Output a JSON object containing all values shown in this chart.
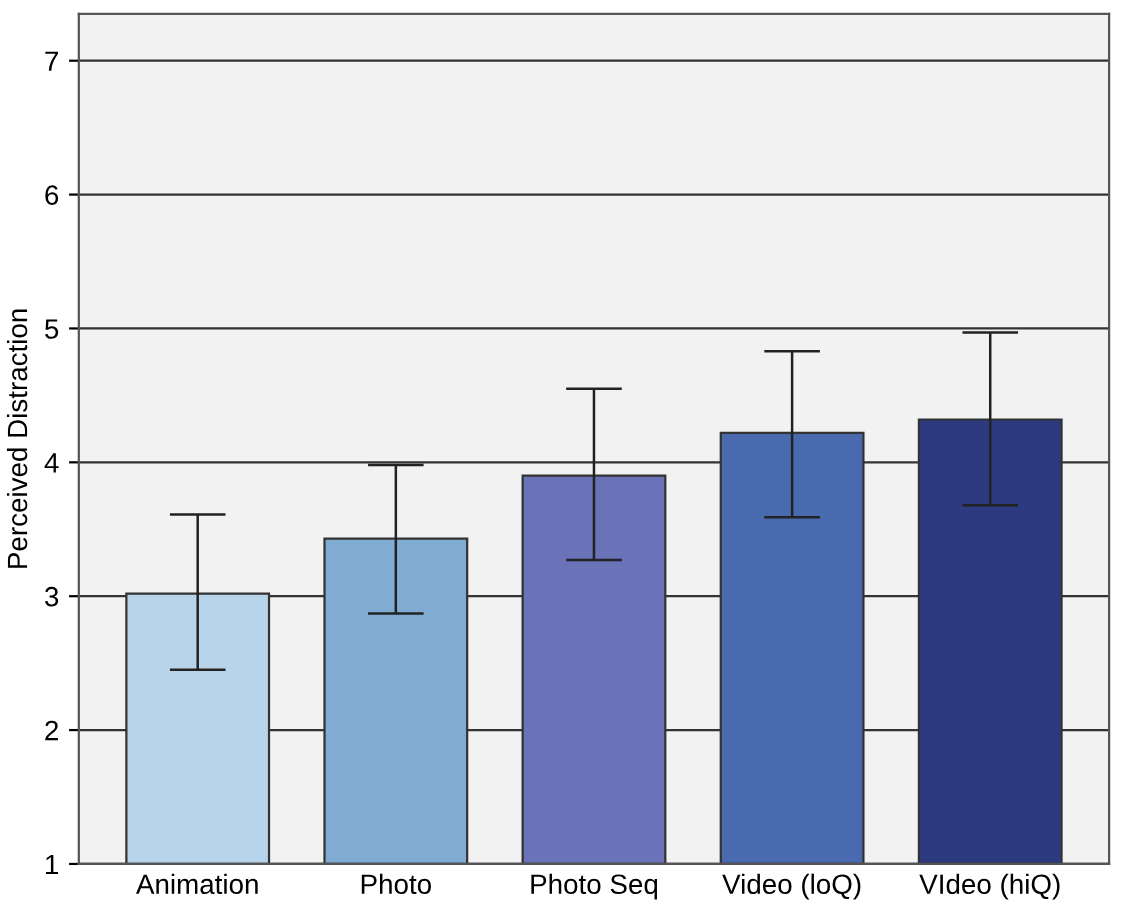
{
  "chart_data": {
    "type": "bar",
    "ylabel": "Perceived Distraction",
    "categories": [
      "Animation",
      "Photo",
      "Photo Seq",
      "Video (loQ)",
      "VIdeo (hiQ)"
    ],
    "values": [
      3.02,
      3.43,
      3.9,
      4.22,
      4.32
    ],
    "errors": [
      [
        2.45,
        3.61
      ],
      [
        2.87,
        3.98
      ],
      [
        3.27,
        4.55
      ],
      [
        3.59,
        4.83
      ],
      [
        3.68,
        4.97
      ]
    ],
    "colors": [
      "#b8d4ea",
      "#80acd4",
      "#6a72b8",
      "#4a6ab0",
      "#2e3a80"
    ],
    "ylim": [
      1,
      7.35
    ],
    "yticks": [
      1,
      2,
      3,
      4,
      5,
      6,
      7
    ],
    "grid": "y"
  }
}
